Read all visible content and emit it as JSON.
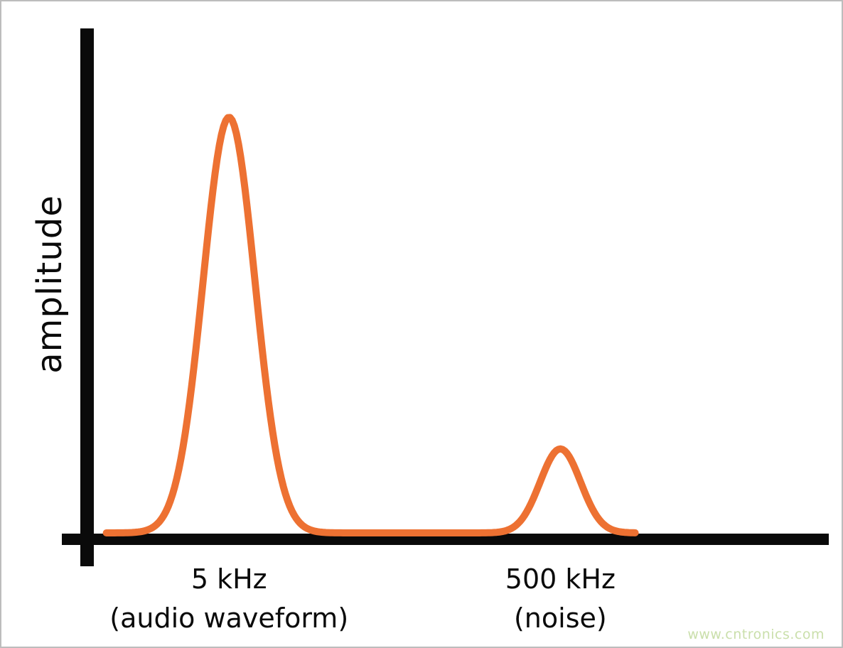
{
  "chart_data": {
    "type": "line",
    "title": "",
    "xlabel": "",
    "ylabel": "amplitude",
    "grid": false,
    "legend": false,
    "line_color": "#ED7132",
    "axis_color": "#0A0A0A",
    "description": "Frequency spectrum with two Gaussian-shaped peaks on an unlabeled amplitude scale",
    "curve_start_frac": 0.058,
    "curve_end_frac": 0.749,
    "peaks": [
      {
        "tick_label": "5 kHz",
        "sub_label": "(audio waveform)",
        "relative_amplitude": 1.0,
        "center_frac": 0.218,
        "sigma_frac": 0.0338
      },
      {
        "tick_label": "500 kHz",
        "sub_label": "(noise)",
        "relative_amplitude": 0.202,
        "center_frac": 0.65,
        "sigma_frac": 0.0264
      }
    ]
  },
  "watermark": {
    "text": "www.cntronics.com",
    "color": "#CADFAB"
  }
}
